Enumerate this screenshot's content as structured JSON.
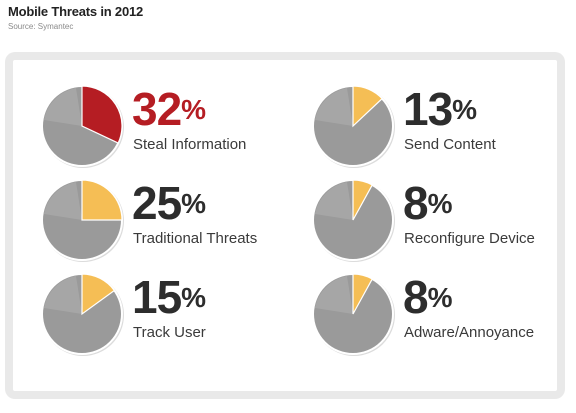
{
  "header": {
    "title": "Mobile Threats in 2012",
    "source": "Source: Symantec"
  },
  "colors": {
    "pie_base": "#9a9a9a",
    "pie_highlight_primary": "#b51d23",
    "pie_highlight_secondary": "#f5be55",
    "pct_primary": "#b51d23",
    "pct_default": "#2d2d2d"
  },
  "chart_data": {
    "type": "pie",
    "title": "Mobile Threats in 2012",
    "subtitle": "Source: Symantec",
    "items": [
      {
        "label": "Steal Information",
        "value": 32,
        "pct_text": "32",
        "unit": "%",
        "highlight": "primary"
      },
      {
        "label": "Send Content",
        "value": 13,
        "pct_text": "13",
        "unit": "%",
        "highlight": "secondary"
      },
      {
        "label": "Traditional Threats",
        "value": 25,
        "pct_text": "25",
        "unit": "%",
        "highlight": "secondary"
      },
      {
        "label": "Reconfigure Device",
        "value": 8,
        "pct_text": "8",
        "unit": "%",
        "highlight": "secondary"
      },
      {
        "label": "Track User",
        "value": 15,
        "pct_text": "15",
        "unit": "%",
        "highlight": "secondary"
      },
      {
        "label": "Adware/Annoyance",
        "value": 8,
        "pct_text": "8",
        "unit": "%",
        "highlight": "secondary"
      }
    ]
  }
}
